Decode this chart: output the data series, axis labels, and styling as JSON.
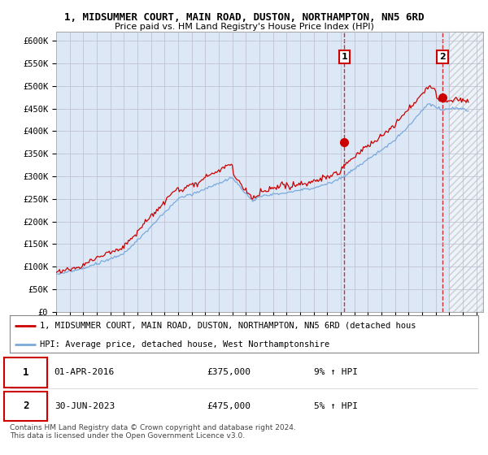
{
  "title1": "1, MIDSUMMER COURT, MAIN ROAD, DUSTON, NORTHAMPTON, NN5 6RD",
  "title2": "Price paid vs. HM Land Registry's House Price Index (HPI)",
  "ylim": [
    0,
    620000
  ],
  "yticks": [
    0,
    50000,
    100000,
    150000,
    200000,
    250000,
    300000,
    350000,
    400000,
    450000,
    500000,
    550000,
    600000
  ],
  "ytick_labels": [
    "£0",
    "£50K",
    "£100K",
    "£150K",
    "£200K",
    "£250K",
    "£300K",
    "£350K",
    "£400K",
    "£450K",
    "£500K",
    "£550K",
    "£600K"
  ],
  "hpi_color": "#7aaadd",
  "price_color": "#cc0000",
  "transaction1_date": 2016.25,
  "transaction1_price": 375000,
  "transaction2_date": 2023.5,
  "transaction2_price": 475000,
  "legend_label1": "1, MIDSUMMER COURT, MAIN ROAD, DUSTON, NORTHAMPTON, NN5 6RD (detached hous",
  "legend_label2": "HPI: Average price, detached house, West Northamptonshire",
  "footnote": "Contains HM Land Registry data © Crown copyright and database right 2024.\nThis data is licensed under the Open Government Licence v3.0.",
  "plot_bg_color": "#dce8f5",
  "grid_color": "#bbbbcc",
  "hatch_start": 2024.0,
  "xlim_start": 1995,
  "xlim_end": 2026.5
}
